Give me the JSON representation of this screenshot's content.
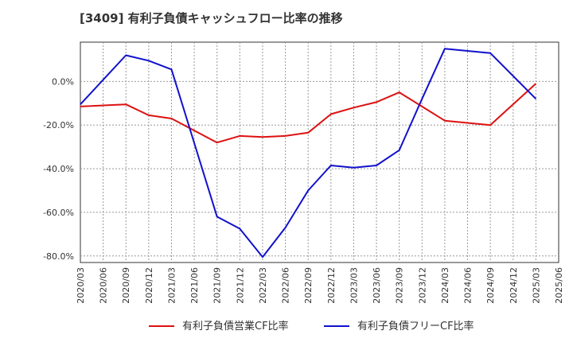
{
  "chart_data": {
    "type": "line",
    "title": "[3409]  有利子負債キャッシュフロー比率の推移",
    "xlabel": "",
    "ylabel": "",
    "ylim": [
      -83,
      18
    ],
    "y_ticks": [
      {
        "value": 0,
        "label": "0.0%"
      },
      {
        "value": -20,
        "label": "-20.0%"
      },
      {
        "value": -40,
        "label": "-40.0%"
      },
      {
        "value": -60,
        "label": "-60.0%"
      },
      {
        "value": -80,
        "label": "-80.0%"
      }
    ],
    "x_ticks": [
      "2020/03",
      "2020/06",
      "2020/09",
      "2020/12",
      "2021/03",
      "2021/06",
      "2021/09",
      "2021/12",
      "2022/03",
      "2022/06",
      "2022/09",
      "2022/12",
      "2023/03",
      "2023/06",
      "2023/09",
      "2023/12",
      "2024/03",
      "2024/06",
      "2024/09",
      "2024/12",
      "2025/03",
      "2025/06"
    ],
    "grid": true,
    "legend_position": "bottom",
    "series": [
      {
        "name": "有利子負債営業CF比率",
        "color": "#dd1111",
        "points": [
          [
            "2020/03",
            -11.5
          ],
          [
            "2020/09",
            -10.5
          ],
          [
            "2020/12",
            -15.5
          ],
          [
            "2021/03",
            -17
          ],
          [
            "2021/09",
            -28
          ],
          [
            "2021/12",
            -25
          ],
          [
            "2022/03",
            -25.5
          ],
          [
            "2022/06",
            -25
          ],
          [
            "2022/09",
            -23.5
          ],
          [
            "2022/12",
            -15
          ],
          [
            "2023/03",
            -12
          ],
          [
            "2023/06",
            -9.5
          ],
          [
            "2023/09",
            -5
          ],
          [
            "2023/12",
            -11.5
          ],
          [
            "2024/03",
            -18
          ],
          [
            "2024/09",
            -20
          ],
          [
            "2025/03",
            -1
          ]
        ]
      },
      {
        "name": "有利子負債フリーCF比率",
        "color": "#1111cc",
        "points": [
          [
            "2020/03",
            -10.5
          ],
          [
            "2020/09",
            12
          ],
          [
            "2020/12",
            9.5
          ],
          [
            "2021/03",
            5.5
          ],
          [
            "2021/09",
            -62
          ],
          [
            "2021/12",
            -67.5
          ],
          [
            "2022/03",
            -80.5
          ],
          [
            "2022/06",
            -67
          ],
          [
            "2022/09",
            -50
          ],
          [
            "2022/12",
            -38.5
          ],
          [
            "2023/03",
            -39.5
          ],
          [
            "2023/06",
            -38.5
          ],
          [
            "2023/09",
            -31.5
          ],
          [
            "2023/12",
            -8
          ],
          [
            "2024/03",
            15
          ],
          [
            "2024/09",
            13
          ],
          [
            "2025/03",
            -8
          ]
        ]
      }
    ]
  }
}
